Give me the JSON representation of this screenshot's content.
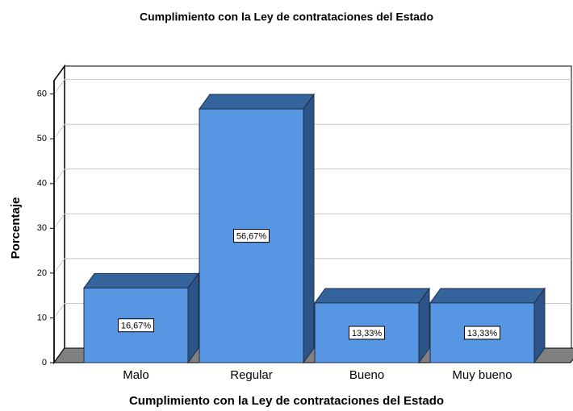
{
  "chart_data": {
    "type": "bar3d",
    "title": "Cumplimiento con la Ley de contrataciones del Estado",
    "xlabel": "Cumplimiento con la Ley de contrataciones del Estado",
    "ylabel": "Porcentaje",
    "categories": [
      "Malo",
      "Regular",
      "Bueno",
      "Muy bueno"
    ],
    "values": [
      16.67,
      56.67,
      13.33,
      13.33
    ],
    "value_labels": [
      "16,67%",
      "56,67%",
      "13,33%",
      "13,33%"
    ],
    "color": "#5696e3",
    "ylim": [
      0,
      63
    ],
    "yticks": [
      0,
      10,
      20,
      30,
      40,
      50,
      60
    ],
    "grid": true
  }
}
